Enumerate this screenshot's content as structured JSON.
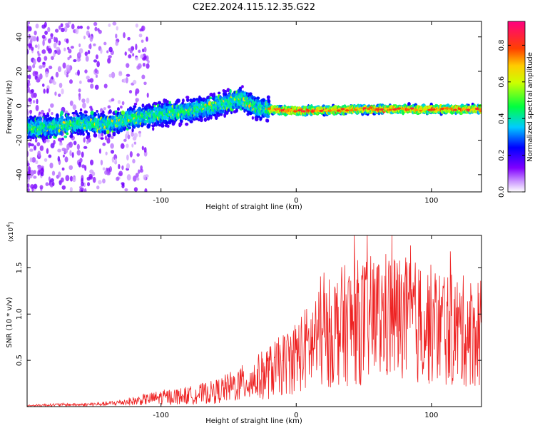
{
  "title": "C2E2.2024.115.12.35.G22",
  "chart_data": [
    {
      "type": "heatmap",
      "xlabel": "Height of straight line (km)",
      "ylabel": "Frequency (Hz)",
      "xlim": [
        -199,
        137
      ],
      "ylim": [
        -50,
        49
      ],
      "x_ticks": [
        -100,
        0,
        100
      ],
      "y_ticks": [
        -40,
        -20,
        0,
        20,
        40
      ],
      "colorbar": {
        "label": "Normalized spectral amplitude",
        "range": [
          0.0,
          0.93
        ],
        "ticks": [
          "0.0",
          "0.2",
          "0.4",
          "0.6",
          "0.8"
        ],
        "tick_values": [
          0,
          0.2,
          0.4,
          0.6,
          0.8
        ],
        "colormap": [
          "#ffffff",
          "#8000ff",
          "#0000ff",
          "#00ffff",
          "#00ff00",
          "#ffff00",
          "#ff8000",
          "#ff0000",
          "#ff0080"
        ]
      },
      "ridge": {
        "x": [
          -199,
          -180,
          -160,
          -140,
          -120,
          -100,
          -80,
          -60,
          -50,
          -40,
          -30,
          -20,
          0,
          50,
          100,
          137
        ],
        "y": [
          -13,
          -12,
          -10,
          -11,
          -7,
          -5,
          -3,
          0,
          2,
          4,
          -1,
          -2,
          -3,
          -2,
          -2,
          -2
        ]
      }
    },
    {
      "type": "line",
      "xlabel": "Height of straight line (km)",
      "ylabel": "SNR (10 * v/v)",
      "scale_label": "(x10^4)",
      "xlim": [
        -199,
        137
      ],
      "ylim": [
        0,
        1.85
      ],
      "x_ticks": [
        -100,
        0,
        100
      ],
      "y_ticks": [
        0.5,
        1.0,
        1.5
      ],
      "y_tick_labels": [
        "0.5",
        "1.0",
        "1.5"
      ],
      "series": [
        {
          "color": "#ee2222",
          "x": [
            -199,
            -180,
            -160,
            -140,
            -120,
            -100,
            -80,
            -60,
            -40,
            -30,
            -20,
            -10,
            0,
            10,
            20,
            30,
            40,
            50,
            60,
            70,
            80,
            90,
            100,
            110,
            120,
            130,
            137
          ],
          "y": [
            0.01,
            0.02,
            0.02,
            0.03,
            0.06,
            0.1,
            0.12,
            0.16,
            0.25,
            0.3,
            0.38,
            0.45,
            0.55,
            0.65,
            0.75,
            0.85,
            0.9,
            0.92,
            0.95,
            0.98,
            0.93,
            0.9,
            0.88,
            0.85,
            0.82,
            0.8,
            0.85
          ]
        }
      ]
    }
  ]
}
